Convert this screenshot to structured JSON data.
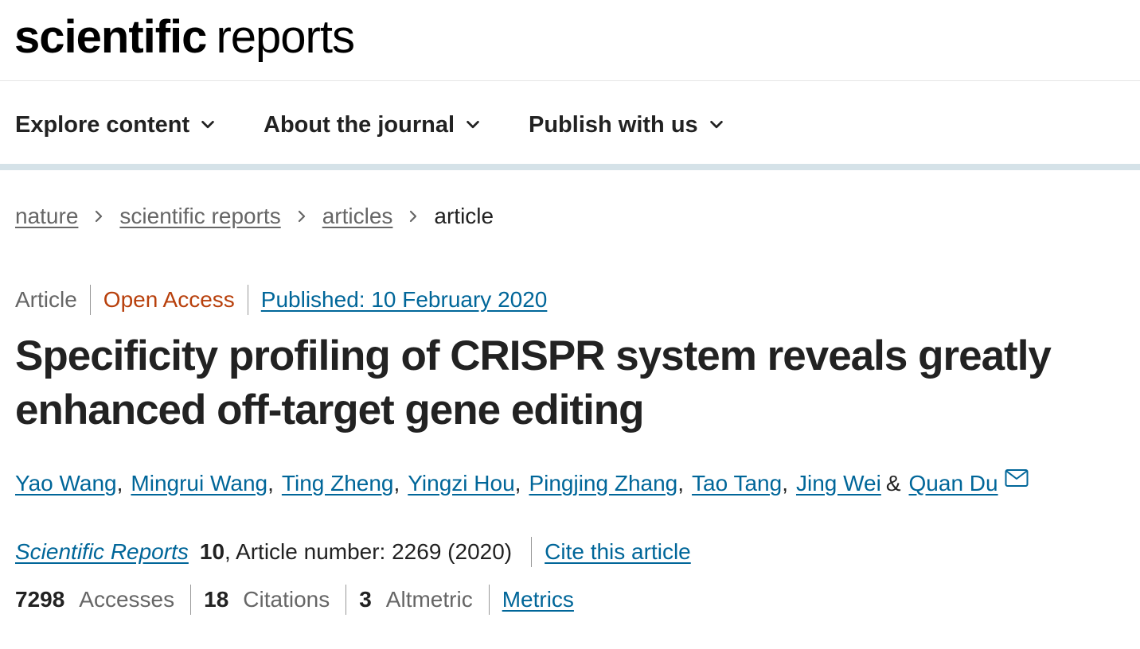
{
  "logo": {
    "part1": "scientific",
    "part2": "reports"
  },
  "nav": {
    "items": [
      {
        "label": "Explore content"
      },
      {
        "label": "About the journal"
      },
      {
        "label": "Publish with us"
      }
    ]
  },
  "breadcrumb": {
    "items": [
      {
        "label": "nature"
      },
      {
        "label": "scientific reports"
      },
      {
        "label": "articles"
      }
    ],
    "current": "article"
  },
  "article": {
    "type": "Article",
    "access": "Open Access",
    "published": "Published: 10 February 2020",
    "title": "Specificity profiling of CRISPR system reveals greatly enhanced off-target gene editing",
    "authors": [
      "Yao Wang",
      "Mingrui Wang",
      "Ting Zheng",
      "Yingzi Hou",
      "Pingjing Zhang",
      "Tao Tang",
      "Jing Wei",
      "Quan Du"
    ],
    "author_separator": ",",
    "last_author_joiner": "&",
    "journal": "Scientific Reports",
    "volume": "10",
    "article_number": ", Article number: 2269 (2020)",
    "cite_label": "Cite this article"
  },
  "metrics": {
    "accesses_count": "7298",
    "accesses_label": "Accesses",
    "citations_count": "18",
    "citations_label": "Citations",
    "altmetric_count": "3",
    "altmetric_label": "Altmetric",
    "metrics_link": "Metrics"
  },
  "colors": {
    "link": "#006699",
    "open_access": "#b8400c",
    "text": "#222222",
    "muted": "#666666",
    "nav_rule": "#d5e2e8"
  },
  "icons": {
    "nav_chevron": "chevron-down-icon",
    "breadcrumb_separator": "chevron-right-icon",
    "corresponding_author": "mail-icon"
  }
}
